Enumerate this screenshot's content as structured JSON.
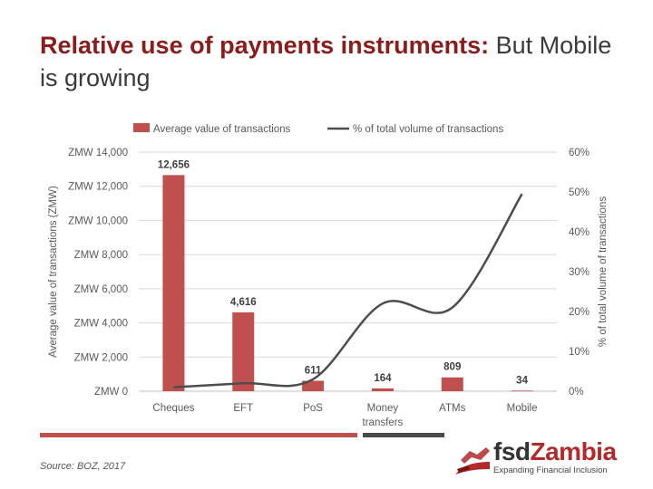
{
  "slide": {
    "title_bold": "Relative use of payments instruments:",
    "title_rest": " But Mobile is growing",
    "source": "Source: BOZ, 2017"
  },
  "logo": {
    "word_a": "fsd",
    "word_b": "Zambia",
    "tagline": "Expanding Financial Inclusion"
  },
  "colors": {
    "bar": "#c0504d",
    "line": "#4d4d4d",
    "title_accent": "#8b1c1c",
    "grid": "#d9d9d9"
  },
  "chart_data": {
    "type": "bar",
    "categories": [
      "Cheques",
      "EFT",
      "PoS",
      "Money transfers",
      "ATMs",
      "Mobile"
    ],
    "category_lines": [
      [
        "Cheques"
      ],
      [
        "EFT"
      ],
      [
        "PoS"
      ],
      [
        "Money",
        "transfers"
      ],
      [
        "ATMs"
      ],
      [
        "Mobile"
      ]
    ],
    "series": [
      {
        "name": "Average value of transactions",
        "type": "bar",
        "axis": "left",
        "values": [
          12656,
          4616,
          611,
          164,
          809,
          34
        ],
        "data_labels": [
          "12,656",
          "4,616",
          "611",
          "164",
          "809",
          "34"
        ]
      },
      {
        "name": "% of total volume of transactions",
        "type": "line",
        "axis": "right",
        "values": [
          1,
          2,
          3,
          22,
          21,
          49.5
        ]
      }
    ],
    "ylabel": "Average value of transactions (ZMW)",
    "y2label": "% of total volume of transactions",
    "ylim": [
      0,
      14000
    ],
    "y2lim": [
      0,
      60
    ],
    "yticks": [
      "ZMW 0",
      "ZMW 2,000",
      "ZMW 4,000",
      "ZMW 6,000",
      "ZMW 8,000",
      "ZMW 10,000",
      "ZMW 12,000",
      "ZMW 14,000"
    ],
    "y2ticks": [
      "0%",
      "10%",
      "20%",
      "30%",
      "40%",
      "50%",
      "60%"
    ],
    "grid": true,
    "legend": "top"
  }
}
